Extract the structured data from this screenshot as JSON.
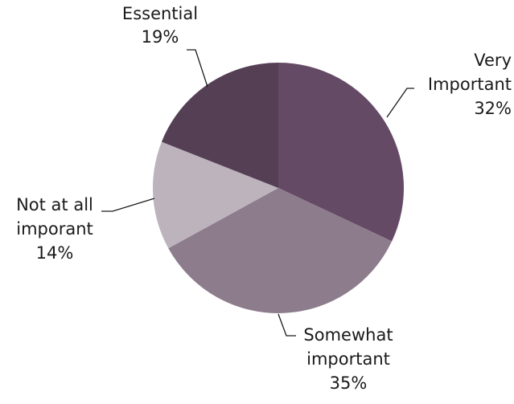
{
  "chart_data": {
    "type": "pie",
    "slices": [
      {
        "label": "Very Important",
        "label_lines": [
          "Very",
          "Important"
        ],
        "value_label": "32%",
        "value": 32,
        "color": "#654a65"
      },
      {
        "label": "Somewhat important",
        "label_lines": [
          "Somewhat",
          "important"
        ],
        "value_label": "35%",
        "value": 35,
        "color": "#8d7c8c"
      },
      {
        "label": "Not at all imporant",
        "label_lines": [
          "Not at all",
          "imporant"
        ],
        "value_label": "14%",
        "value": 14,
        "color": "#bcb3bc"
      },
      {
        "label": "Essential",
        "label_lines": [
          "Essential"
        ],
        "value_label": "19%",
        "value": 19,
        "color": "#553f55"
      }
    ],
    "start_angle": "12 o'clock",
    "direction": "clockwise",
    "legend": "none"
  }
}
